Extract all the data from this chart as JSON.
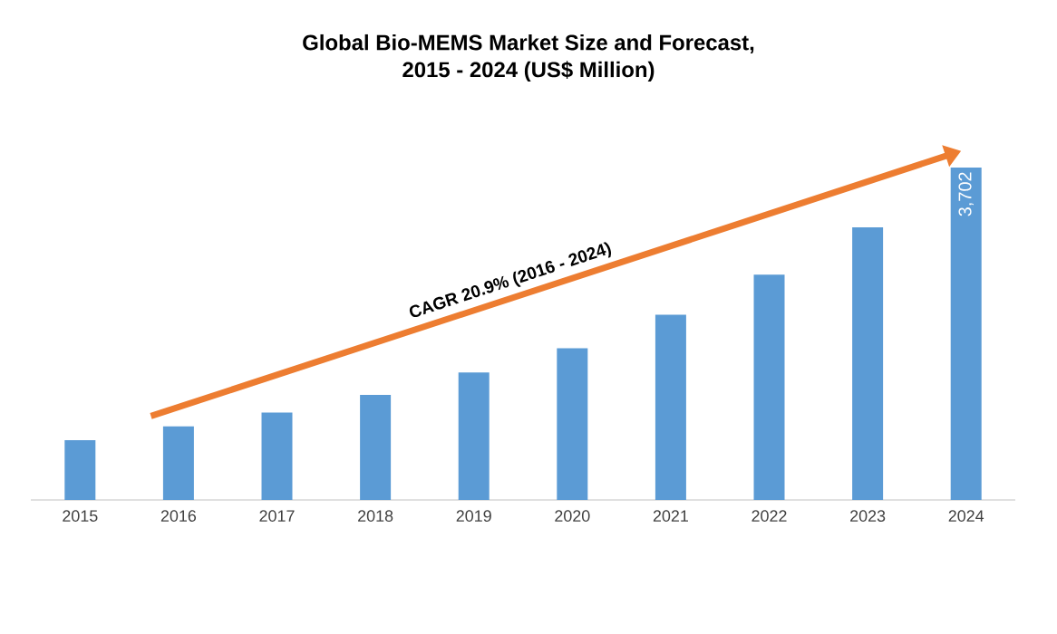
{
  "chart_data": {
    "type": "bar",
    "title": "Global Bio-MEMS Market Size and Forecast,\n2015 - 2024 (US$ Million)",
    "categories": [
      "2015",
      "2016",
      "2017",
      "2018",
      "2019",
      "2020",
      "2021",
      "2022",
      "2023",
      "2024"
    ],
    "values": [
      666,
      819,
      973,
      1171,
      1419,
      1690,
      2063,
      2509,
      3036,
      3702
    ],
    "value_labels": [
      null,
      null,
      null,
      null,
      null,
      null,
      null,
      null,
      null,
      "3,702"
    ],
    "color": "#5b9bd5",
    "annotations": [
      "CAGR 20.9% (2016 - 2024)"
    ]
  }
}
